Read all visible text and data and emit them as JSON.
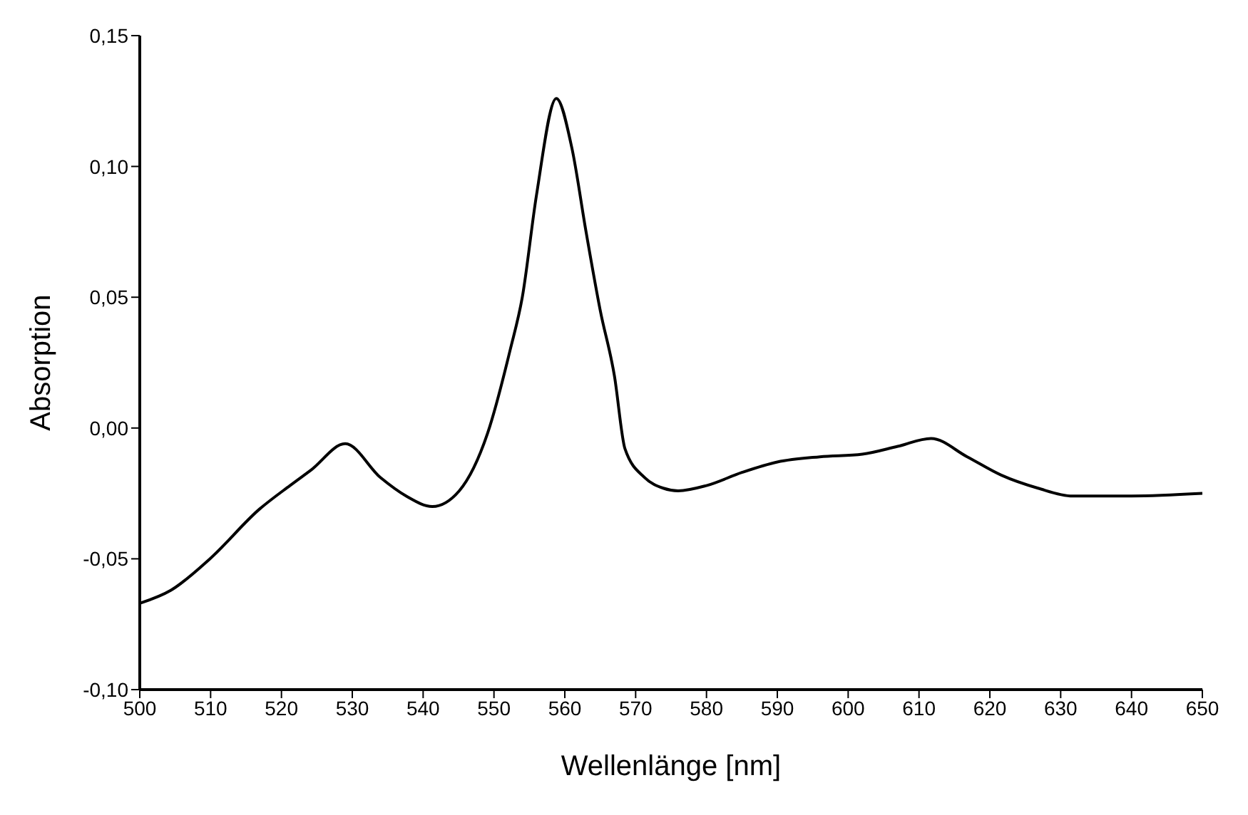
{
  "chart_data": {
    "type": "line",
    "xlabel": "Wellenlänge [nm]",
    "ylabel": "Absorption",
    "x": [
      500,
      504.4,
      509.9,
      516.9,
      521.2,
      524.2,
      529,
      534,
      537.6,
      541.3,
      545.1,
      549.1,
      552.3,
      554,
      556,
      558.8,
      561,
      563,
      565,
      567,
      568.5,
      571.3,
      573.9,
      576,
      580,
      585,
      590,
      596,
      602,
      607,
      611.7,
      616.8,
      621.6,
      626.8,
      631.7,
      640,
      650
    ],
    "series": [
      {
        "color": "#000000",
        "values": [
          -0.067,
          -0.062,
          -0.05,
          -0.031,
          -0.022,
          -0.016,
          -0.006,
          -0.019,
          -0.026,
          -0.03,
          -0.024,
          -0.002,
          0.03,
          0.05,
          0.089,
          0.126,
          0.107,
          0.075,
          0.045,
          0.02,
          -0.008,
          -0.019,
          -0.023,
          -0.024,
          -0.022,
          -0.017,
          -0.013,
          -0.011,
          -0.01,
          -0.007,
          -0.004,
          -0.011,
          -0.018,
          -0.023,
          -0.026,
          -0.026,
          -0.025
        ]
      }
    ],
    "xlim": [
      500,
      650
    ],
    "xticks": [
      500,
      510,
      520,
      530,
      540,
      550,
      560,
      570,
      580,
      590,
      600,
      610,
      620,
      630,
      640,
      650
    ],
    "ylim": [
      -0.1,
      0.15
    ],
    "yticks": [
      {
        "value": -0.1,
        "label": "-0,10"
      },
      {
        "value": -0.05,
        "label": "-0,05"
      },
      {
        "value": 0,
        "label": "0,00"
      },
      {
        "value": 0.05,
        "label": "0,05"
      },
      {
        "value": 0.1,
        "label": "0,10"
      },
      {
        "value": 0.15,
        "label": "0,15"
      }
    ],
    "grid": false,
    "legend": false,
    "marker": "none",
    "line_style": "solid"
  }
}
